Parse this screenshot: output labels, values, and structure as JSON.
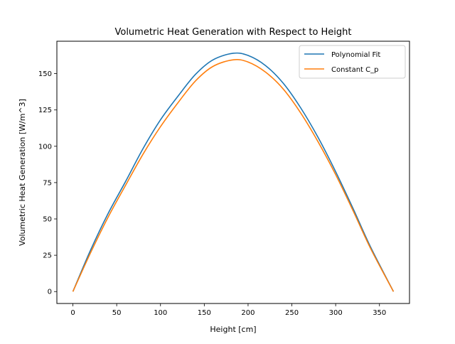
{
  "chart_data": {
    "type": "line",
    "title": "Volumetric Heat Generation with Respect to Height",
    "xlabel": "Height [cm]",
    "ylabel": "Volumetric Heat Generation [W/m^3]",
    "xlim": [
      -18.3,
      384.3
    ],
    "ylim": [
      -8.2,
      172.3
    ],
    "xticks": [
      0,
      50,
      100,
      150,
      200,
      250,
      300,
      350
    ],
    "yticks": [
      0,
      25,
      50,
      75,
      100,
      125,
      150
    ],
    "grid": false,
    "legend_position": "top-right",
    "series": [
      {
        "name": "Polynomial Fit",
        "color": "#1f77b4",
        "x": [
          0,
          20,
          40,
          60,
          80,
          100,
          120,
          140,
          160,
          183,
          200,
          220,
          240,
          260,
          280,
          300,
          320,
          340,
          366
        ],
        "y": [
          0,
          28.3,
          53.5,
          75.6,
          98.3,
          118.2,
          134.5,
          149.5,
          159.5,
          164.0,
          162.5,
          155.5,
          143.5,
          126.5,
          106.0,
          82.5,
          57.0,
          30.5,
          0
        ]
      },
      {
        "name": "Constant C_p",
        "color": "#ff7f0e",
        "x": [
          0,
          20,
          40,
          60,
          80,
          100,
          120,
          140,
          160,
          183,
          200,
          220,
          240,
          260,
          280,
          300,
          320,
          340,
          366
        ],
        "y": [
          0,
          26.5,
          51.0,
          73.0,
          94.5,
          113.5,
          130.0,
          145.0,
          155.0,
          159.5,
          158.0,
          151.0,
          139.5,
          123.0,
          103.0,
          80.5,
          55.5,
          29.5,
          0
        ]
      }
    ]
  }
}
